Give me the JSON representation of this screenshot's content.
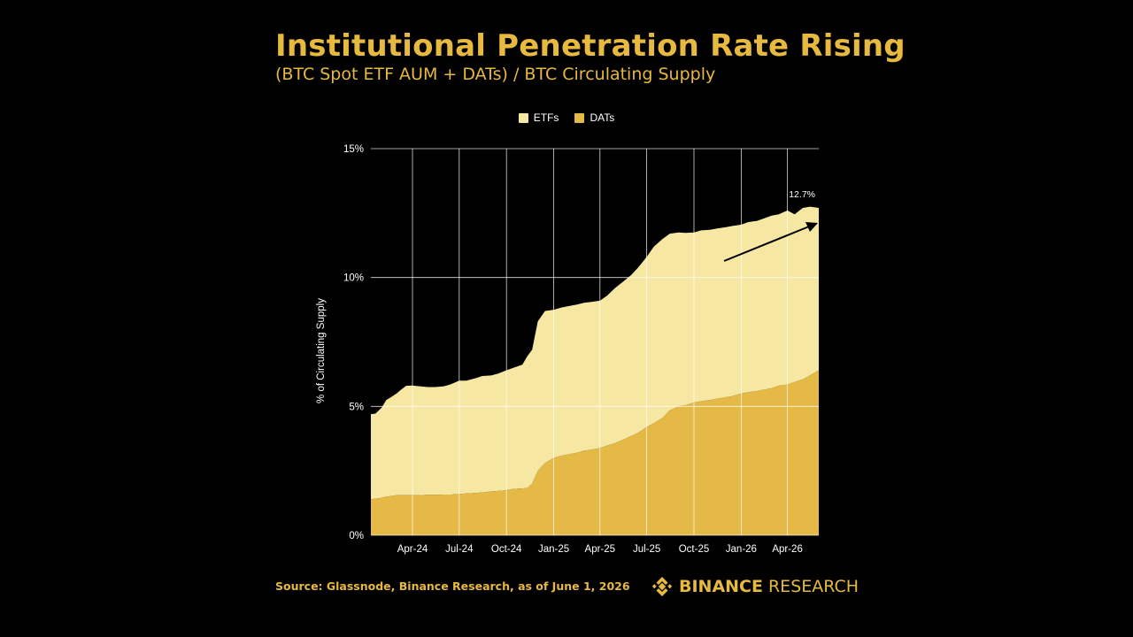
{
  "header": {
    "title": "Institutional Penetration Rate Rising",
    "subtitle": "(BTC Spot ETF AUM + DATs) / BTC Circulating Supply"
  },
  "footer": {
    "source": "Source: Glassnode, Binance Research, as of June 1, 2026",
    "brand_bold": "BINANCE",
    "brand_light": "RESEARCH"
  },
  "colors": {
    "etf": "#f6e7a2",
    "dat": "#e5b946",
    "accent": "#e8b93f",
    "grid": "#ffffff",
    "background": "#000000"
  },
  "chart_data": {
    "type": "area",
    "stacked": true,
    "ylabel": "% of Circulating Supply",
    "ylim": [
      0,
      15
    ],
    "yticks": [
      "0%",
      "5%",
      "10%",
      "15%"
    ],
    "yticks_values": [
      0,
      5,
      10,
      15
    ],
    "x_tick_labels": [
      "Apr-24",
      "Jul-24",
      "Oct-24",
      "Jan-25",
      "Apr-25",
      "Jul-25",
      "Oct-25",
      "Jan-26",
      "Apr-26"
    ],
    "x_tick_dates": [
      "2024-04-01",
      "2024-07-01",
      "2024-10-01",
      "2025-01-01",
      "2025-04-01",
      "2025-07-01",
      "2025-10-01",
      "2026-01-01",
      "2026-04-01"
    ],
    "x_range": [
      "2024-01-11",
      "2026-06-01"
    ],
    "legend": [
      {
        "name": "ETFs"
      },
      {
        "name": "DATs"
      }
    ],
    "legend_position": "top-center",
    "annotation": {
      "text": "12.7%",
      "date": "2026-06-01",
      "value": 12.7
    },
    "grid": true,
    "dates": [
      "2024-01-11",
      "2024-01-20",
      "2024-02-01",
      "2024-02-10",
      "2024-02-20",
      "2024-03-01",
      "2024-03-10",
      "2024-03-20",
      "2024-04-01",
      "2024-04-15",
      "2024-05-01",
      "2024-05-15",
      "2024-06-01",
      "2024-06-15",
      "2024-07-01",
      "2024-07-15",
      "2024-08-01",
      "2024-08-15",
      "2024-09-01",
      "2024-09-15",
      "2024-10-01",
      "2024-10-15",
      "2024-11-01",
      "2024-11-10",
      "2024-11-20",
      "2024-12-01",
      "2024-12-15",
      "2025-01-01",
      "2025-01-15",
      "2025-02-01",
      "2025-02-15",
      "2025-03-01",
      "2025-03-15",
      "2025-04-01",
      "2025-04-15",
      "2025-05-01",
      "2025-05-15",
      "2025-06-01",
      "2025-06-15",
      "2025-07-01",
      "2025-07-15",
      "2025-08-01",
      "2025-08-15",
      "2025-09-01",
      "2025-09-15",
      "2025-10-01",
      "2025-10-15",
      "2025-11-01",
      "2025-11-15",
      "2025-12-01",
      "2025-12-15",
      "2026-01-01",
      "2026-01-15",
      "2026-02-01",
      "2026-02-15",
      "2026-03-01",
      "2026-03-15",
      "2026-04-01",
      "2026-04-15",
      "2026-05-01",
      "2026-05-15",
      "2026-06-01"
    ],
    "series": [
      {
        "name": "DATs",
        "values": [
          1.4,
          1.42,
          1.45,
          1.5,
          1.52,
          1.55,
          1.55,
          1.55,
          1.56,
          1.56,
          1.57,
          1.57,
          1.58,
          1.58,
          1.6,
          1.62,
          1.64,
          1.66,
          1.7,
          1.72,
          1.75,
          1.8,
          1.82,
          1.83,
          2.0,
          2.5,
          2.8,
          3.0,
          3.08,
          3.15,
          3.2,
          3.28,
          3.32,
          3.38,
          3.48,
          3.58,
          3.7,
          3.85,
          3.98,
          4.2,
          4.35,
          4.55,
          4.85,
          5.0,
          5.05,
          5.15,
          5.2,
          5.25,
          5.3,
          5.35,
          5.4,
          5.5,
          5.55,
          5.6,
          5.65,
          5.7,
          5.8,
          5.85,
          5.95,
          6.05,
          6.2,
          6.4
        ]
      },
      {
        "name": "ETFs",
        "values": [
          3.3,
          3.3,
          3.5,
          3.75,
          3.85,
          3.95,
          4.1,
          4.25,
          4.25,
          4.22,
          4.18,
          4.18,
          4.2,
          4.28,
          4.4,
          4.38,
          4.45,
          4.52,
          4.5,
          4.55,
          4.65,
          4.7,
          4.8,
          5.1,
          5.2,
          5.8,
          5.9,
          5.75,
          5.75,
          5.75,
          5.75,
          5.74,
          5.73,
          5.72,
          5.82,
          6.02,
          6.12,
          6.25,
          6.42,
          6.6,
          6.85,
          6.95,
          6.85,
          6.75,
          6.68,
          6.6,
          6.63,
          6.6,
          6.6,
          6.6,
          6.6,
          6.55,
          6.6,
          6.6,
          6.65,
          6.7,
          6.65,
          6.75,
          6.5,
          6.65,
          6.55,
          6.3
        ]
      }
    ]
  }
}
